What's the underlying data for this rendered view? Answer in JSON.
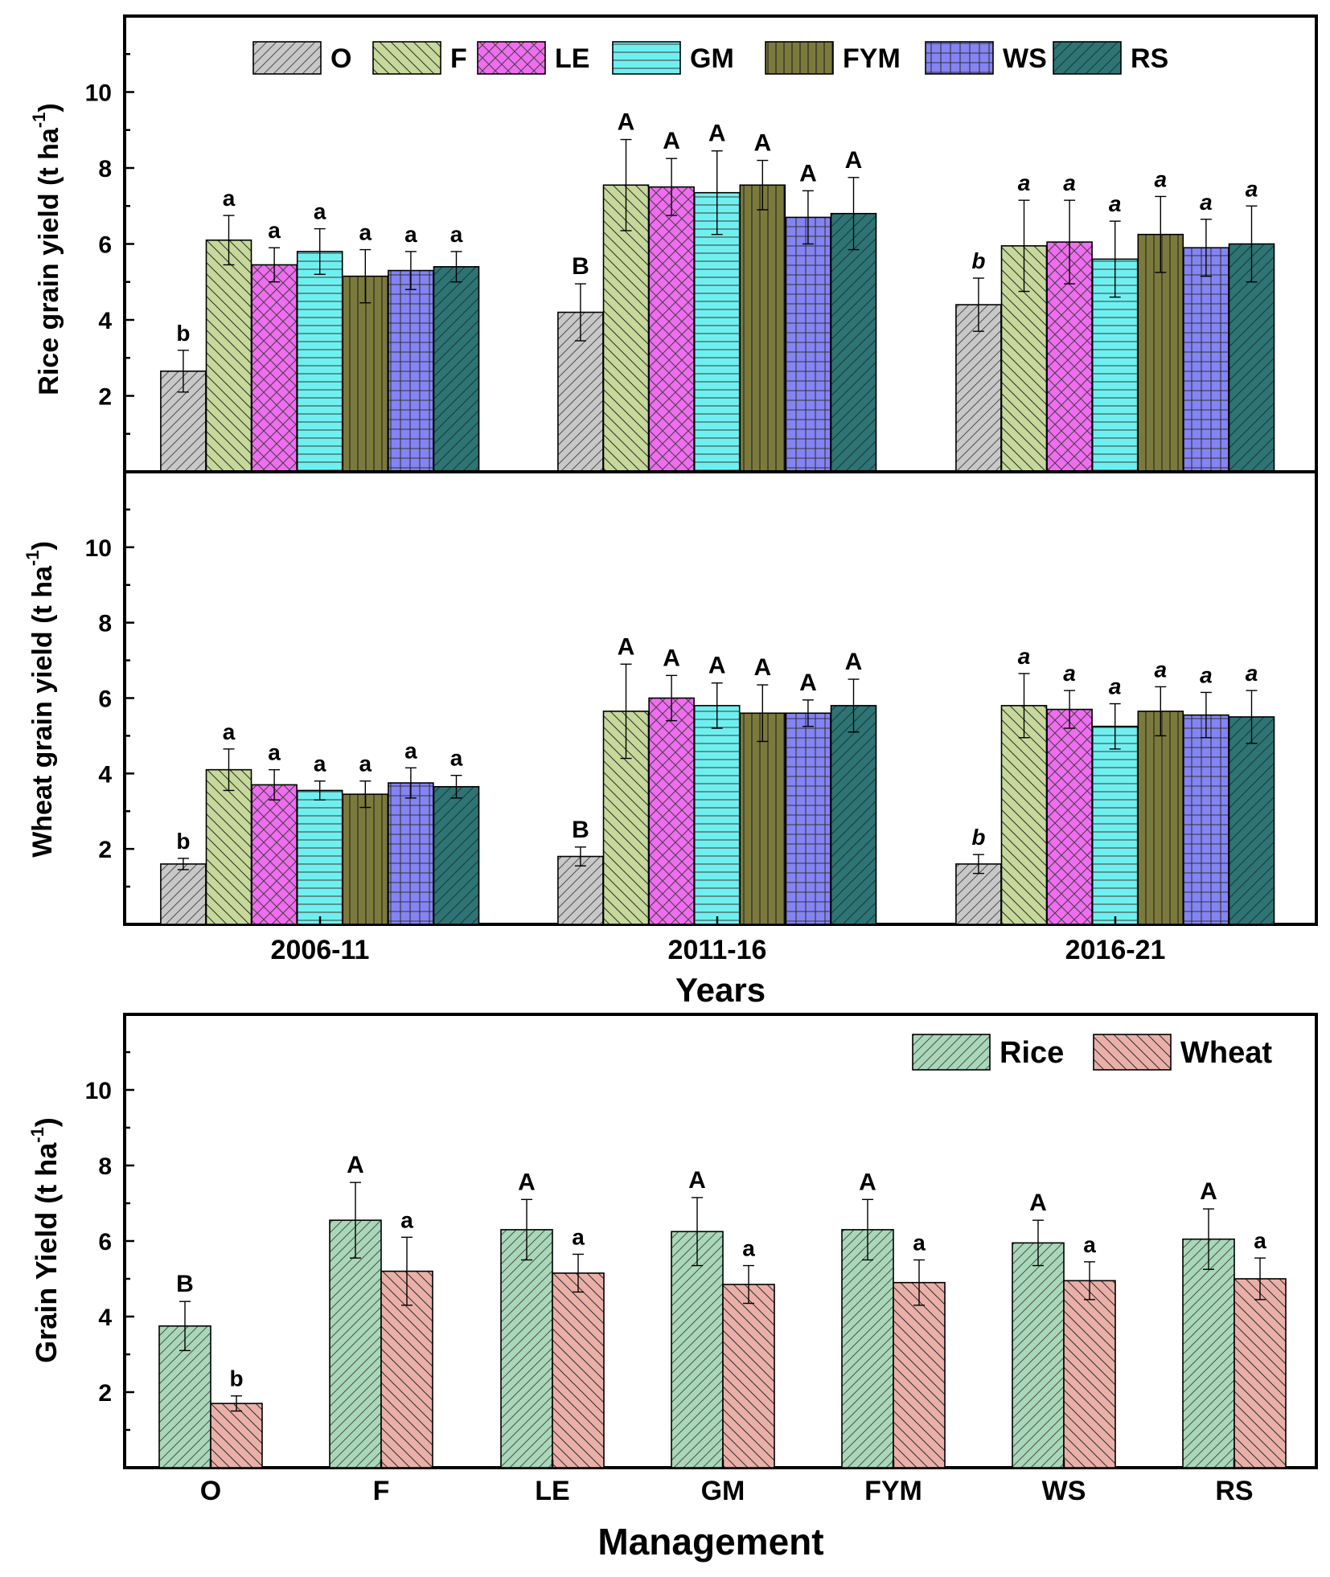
{
  "colors": {
    "O": "#c8c8c8",
    "F": "#c6d99a",
    "LE": "#f06cf0",
    "GM": "#6ff0f0",
    "FYM": "#7b7a3c",
    "WS": "#8484f4",
    "RS": "#2e7474",
    "Rice": "#a8d8b8",
    "Wheat": "#eab0a8"
  },
  "chart_data": [
    {
      "id": "rice",
      "type": "bar",
      "title": "",
      "ylabel": "Rice grain yield (t ha",
      "ylabel_sup": "-1",
      "ylabel_close": ")",
      "ylim": [
        0,
        12
      ],
      "yticks": [
        "2",
        "4",
        "6",
        "8",
        "10"
      ],
      "categories": [
        "2006-11",
        "2011-16",
        "2016-21"
      ],
      "legend": [
        "O",
        "F",
        "LE",
        "GM",
        "FYM",
        "WS",
        "RS"
      ],
      "series": [
        {
          "name": "O",
          "values": [
            2.65,
            4.2,
            4.4
          ],
          "errors": [
            0.55,
            0.75,
            0.7
          ],
          "labels": [
            "b",
            "B",
            "b"
          ]
        },
        {
          "name": "F",
          "values": [
            6.1,
            7.55,
            5.95
          ],
          "errors": [
            0.65,
            1.2,
            1.2
          ],
          "labels": [
            "a",
            "A",
            "a"
          ]
        },
        {
          "name": "LE",
          "values": [
            5.45,
            7.5,
            6.05
          ],
          "errors": [
            0.45,
            0.75,
            1.1
          ],
          "labels": [
            "a",
            "A",
            "a"
          ]
        },
        {
          "name": "GM",
          "values": [
            5.8,
            7.35,
            5.6
          ],
          "errors": [
            0.6,
            1.1,
            1.0
          ],
          "labels": [
            "a",
            "A",
            "a"
          ]
        },
        {
          "name": "FYM",
          "values": [
            5.15,
            7.55,
            6.25
          ],
          "errors": [
            0.7,
            0.65,
            1.0
          ],
          "labels": [
            "a",
            "A",
            "a"
          ]
        },
        {
          "name": "WS",
          "values": [
            5.3,
            6.7,
            5.9
          ],
          "errors": [
            0.5,
            0.7,
            0.75
          ],
          "labels": [
            "a",
            "A",
            "a"
          ]
        },
        {
          "name": "RS",
          "values": [
            5.4,
            6.8,
            6.0
          ],
          "errors": [
            0.4,
            0.95,
            1.0
          ],
          "labels": [
            "a",
            "A",
            "a"
          ]
        }
      ]
    },
    {
      "id": "wheat",
      "type": "bar",
      "title": "",
      "ylabel": "Wheat grain yield (t ha",
      "ylabel_sup": "-1",
      "ylabel_close": ")",
      "xlabel": "Years",
      "ylim": [
        0,
        12
      ],
      "yticks": [
        "2",
        "4",
        "6",
        "8",
        "10"
      ],
      "categories": [
        "2006-11",
        "2011-16",
        "2016-21"
      ],
      "series": [
        {
          "name": "O",
          "values": [
            1.6,
            1.8,
            1.6
          ],
          "errors": [
            0.15,
            0.25,
            0.25
          ],
          "labels": [
            "b",
            "B",
            "b"
          ]
        },
        {
          "name": "F",
          "values": [
            4.1,
            5.65,
            5.8
          ],
          "errors": [
            0.55,
            1.25,
            0.85
          ],
          "labels": [
            "a",
            "A",
            "a"
          ]
        },
        {
          "name": "LE",
          "values": [
            3.7,
            6.0,
            5.7
          ],
          "errors": [
            0.4,
            0.6,
            0.5
          ],
          "labels": [
            "a",
            "A",
            "a"
          ]
        },
        {
          "name": "GM",
          "values": [
            3.55,
            5.8,
            5.25
          ],
          "errors": [
            0.25,
            0.6,
            0.6
          ],
          "labels": [
            "a",
            "A",
            "a"
          ]
        },
        {
          "name": "FYM",
          "values": [
            3.45,
            5.6,
            5.65
          ],
          "errors": [
            0.35,
            0.75,
            0.65
          ],
          "labels": [
            "a",
            "A",
            "a"
          ]
        },
        {
          "name": "WS",
          "values": [
            3.75,
            5.6,
            5.55
          ],
          "errors": [
            0.4,
            0.35,
            0.6
          ],
          "labels": [
            "a",
            "A",
            "a"
          ]
        },
        {
          "name": "RS",
          "values": [
            3.65,
            5.8,
            5.5
          ],
          "errors": [
            0.3,
            0.7,
            0.7
          ],
          "labels": [
            "a",
            "A",
            "a"
          ]
        }
      ]
    },
    {
      "id": "mgmt",
      "type": "bar",
      "title": "",
      "ylabel": "Grain Yield (t ha",
      "ylabel_sup": "-1",
      "ylabel_close": ")",
      "xlabel": "Management",
      "ylim": [
        0,
        12
      ],
      "yticks": [
        "2",
        "4",
        "6",
        "8",
        "10"
      ],
      "categories": [
        "O",
        "F",
        "LE",
        "GM",
        "FYM",
        "WS",
        "RS"
      ],
      "legend": [
        "Rice",
        "Wheat"
      ],
      "series": [
        {
          "name": "Rice",
          "values": [
            3.75,
            6.55,
            6.3,
            6.25,
            6.3,
            5.95,
            6.05
          ],
          "errors": [
            0.65,
            1.0,
            0.8,
            0.9,
            0.8,
            0.6,
            0.8
          ],
          "labels": [
            "B",
            "A",
            "A",
            "A",
            "A",
            "A",
            "A"
          ]
        },
        {
          "name": "Wheat",
          "values": [
            1.7,
            5.2,
            5.15,
            4.85,
            4.9,
            4.95,
            5.0
          ],
          "errors": [
            0.2,
            0.9,
            0.5,
            0.5,
            0.6,
            0.5,
            0.55
          ],
          "labels": [
            "b",
            "a",
            "a",
            "a",
            "a",
            "a",
            "a"
          ]
        }
      ]
    }
  ]
}
